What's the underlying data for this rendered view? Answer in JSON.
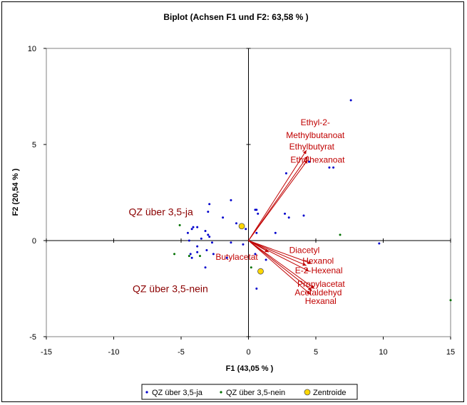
{
  "chart_data": {
    "type": "scatter",
    "title": "Biplot (Achsen F1 und F2: 63,58 % )",
    "xlabel": "F1 (43,05 % )",
    "ylabel": "F2 (20,54 % )",
    "xlim": [
      -15,
      15
    ],
    "ylim": [
      -5,
      10
    ],
    "x_ticks": [
      "-15",
      "-10",
      "-5",
      "0",
      "5",
      "10",
      "15"
    ],
    "y_ticks": [
      "-5",
      "0",
      "5",
      "10"
    ],
    "legend_position": "bottom",
    "legend": [
      "QZ über 3,5-ja",
      "QZ über 3,5-nein",
      "Zentroide"
    ],
    "colors": {
      "ja": "#0000cc",
      "nein": "#007000",
      "centroid": "#ffd700",
      "vector": "#c00000",
      "group_label": "#8b0000"
    },
    "series": [
      {
        "name": "QZ über 3,5-ja",
        "points": [
          [
            7.6,
            7.3
          ],
          [
            6.3,
            3.8
          ],
          [
            6.0,
            3.8
          ],
          [
            4.5,
            4.1
          ],
          [
            2.8,
            3.5
          ],
          [
            2.7,
            1.4
          ],
          [
            4.1,
            1.3
          ],
          [
            3.0,
            1.2
          ],
          [
            0.6,
            1.6
          ],
          [
            0.5,
            1.6
          ],
          [
            0.7,
            1.4
          ],
          [
            -1.3,
            2.1
          ],
          [
            -2.9,
            1.9
          ],
          [
            -3.0,
            1.5
          ],
          [
            -1.9,
            1.2
          ],
          [
            -0.9,
            0.9
          ],
          [
            -0.6,
            0.8
          ],
          [
            -0.2,
            0.6
          ],
          [
            0.6,
            0.4
          ],
          [
            2.0,
            0.4
          ],
          [
            -3.8,
            0.7
          ],
          [
            -4.1,
            0.7
          ],
          [
            -4.2,
            0.6
          ],
          [
            -4.5,
            0.4
          ],
          [
            -3.2,
            0.5
          ],
          [
            -3.0,
            0.3
          ],
          [
            -2.9,
            0.2
          ],
          [
            -3.5,
            0.1
          ],
          [
            -4.4,
            0.0
          ],
          [
            -2.7,
            -0.1
          ],
          [
            -1.3,
            -0.1
          ],
          [
            -3.8,
            -0.3
          ],
          [
            -3.1,
            -0.5
          ],
          [
            -3.8,
            -0.6
          ],
          [
            -4.3,
            -0.7
          ],
          [
            -2.6,
            -0.7
          ],
          [
            -4.2,
            -0.9
          ],
          [
            -0.4,
            -0.2
          ],
          [
            0.5,
            -0.7
          ],
          [
            1.3,
            -1.0
          ],
          [
            -1.6,
            -0.9
          ],
          [
            -3.2,
            -1.4
          ],
          [
            0.6,
            -2.5
          ],
          [
            9.7,
            -0.15
          ]
        ]
      },
      {
        "name": "QZ über 3,5-nein",
        "points": [
          [
            -5.1,
            0.8
          ],
          [
            -5.5,
            -0.7
          ],
          [
            -4.4,
            -0.8
          ],
          [
            -3.6,
            -0.8
          ],
          [
            0.2,
            -1.4
          ],
          [
            6.8,
            0.3
          ],
          [
            15.0,
            -3.1
          ]
        ]
      },
      {
        "name": "Zentroide",
        "points": [
          [
            -0.5,
            0.75
          ],
          [
            0.9,
            -1.6
          ]
        ]
      }
    ],
    "vectors": [
      {
        "label": "Ethyl-2-Methylbutanoat",
        "lines": [
          "Ethyl-2-",
          "Methylbutanoat"
        ],
        "end": [
          4.3,
          4.7
        ],
        "label_at": [
          4.96,
          6.0
        ]
      },
      {
        "label": "Ethylbutyrat",
        "lines": [
          "Ethylbutyrat"
        ],
        "end": [
          4.4,
          4.4
        ],
        "label_at": [
          4.7,
          4.75
        ]
      },
      {
        "label": "Ethylhexanoat",
        "lines": [
          "Ethylhexanoat"
        ],
        "end": [
          4.4,
          4.2
        ],
        "label_at": [
          5.13,
          4.05
        ]
      },
      {
        "label": "Diacetyl",
        "lines": [
          "Diacetyl"
        ],
        "end": [
          4.7,
          -1.2
        ],
        "label_at": [
          4.15,
          -0.65
        ]
      },
      {
        "label": "Hexanol",
        "lines": [
          "Hexanol"
        ],
        "end": [
          4.3,
          -1.3
        ],
        "label_at": [
          5.17,
          -1.2
        ]
      },
      {
        "label": "E-2-Hexenal",
        "lines": [
          "E-2-Hexenal"
        ],
        "end": [
          4.5,
          -1.6
        ],
        "label_at": [
          5.22,
          -1.7
        ]
      },
      {
        "label": "Propylacetat",
        "lines": [
          "Propylacetat"
        ],
        "end": [
          4.9,
          -2.5
        ],
        "label_at": [
          5.39,
          -2.4
        ]
      },
      {
        "label": "Acetaldehyd",
        "lines": [
          "Acetaldehyd"
        ],
        "end": [
          4.7,
          -2.6
        ],
        "label_at": [
          5.18,
          -2.85
        ]
      },
      {
        "label": "Hexanal",
        "lines": [
          "Hexanal"
        ],
        "end": [
          4.6,
          -2.8
        ],
        "label_at": [
          5.36,
          -3.3
        ]
      },
      {
        "label": "Butylacetat",
        "lines": [
          "Butylacetat"
        ],
        "end": [
          1.5,
          -0.6
        ],
        "label_at": [
          -0.87,
          -1.0
        ]
      }
    ],
    "group_labels": [
      {
        "label": "QZ über 3,5-ja",
        "at": [
          -6.5,
          1.5
        ]
      },
      {
        "label": "QZ über 3,5-nein",
        "at": [
          -5.8,
          -2.5
        ]
      }
    ]
  }
}
